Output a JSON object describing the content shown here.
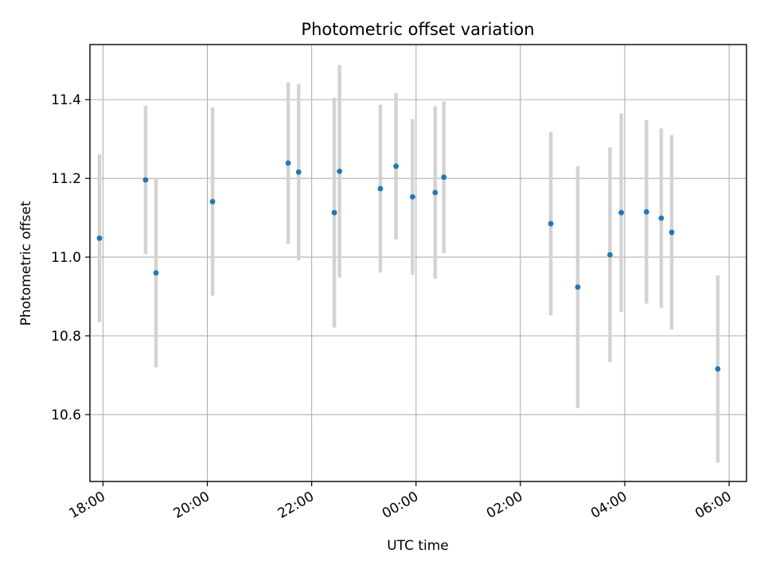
{
  "chart_data": {
    "type": "scatter",
    "title": "Photometric offset variation",
    "xlabel": "UTC time",
    "ylabel": "Photometric offset",
    "x_axis": {
      "type": "time",
      "range": [
        "17:45",
        "30:20"
      ],
      "ticks": [
        {
          "label": "18:00",
          "value": "18:00"
        },
        {
          "label": "20:00",
          "value": "20:00"
        },
        {
          "label": "22:00",
          "value": "22:00"
        },
        {
          "label": "00:00",
          "value": "24:00"
        },
        {
          "label": "02:00",
          "value": "26:00"
        },
        {
          "label": "04:00",
          "value": "28:00"
        },
        {
          "label": "06:00",
          "value": "30:00"
        }
      ]
    },
    "y_axis": {
      "ylim": [
        10.43,
        11.54
      ],
      "ticks": [
        10.6,
        10.8,
        11.0,
        11.2,
        11.4
      ],
      "tick_labels": [
        "10.6",
        "10.8",
        "11.0",
        "11.2",
        "11.4"
      ]
    },
    "grid": true,
    "marker_color": "#1f77b4",
    "errorbar_color": "#d3d3d3",
    "points": [
      {
        "time": "17:56",
        "y": 11.048,
        "err": 0.213
      },
      {
        "time": "18:49",
        "y": 11.196,
        "err": 0.188
      },
      {
        "time": "19:01",
        "y": 10.96,
        "err": 0.24
      },
      {
        "time": "20:06",
        "y": 11.141,
        "err": 0.239
      },
      {
        "time": "21:33",
        "y": 11.239,
        "err": 0.205
      },
      {
        "time": "21:45",
        "y": 11.216,
        "err": 0.224
      },
      {
        "time": "22:26",
        "y": 11.113,
        "err": 0.292
      },
      {
        "time": "22:32",
        "y": 11.218,
        "err": 0.27
      },
      {
        "time": "23:19",
        "y": 11.174,
        "err": 0.213
      },
      {
        "time": "23:37",
        "y": 11.231,
        "err": 0.186
      },
      {
        "time": "23:56",
        "y": 11.153,
        "err": 0.198
      },
      {
        "time": "00:22",
        "y": 11.164,
        "err": 0.219
      },
      {
        "time": "00:32",
        "y": 11.203,
        "err": 0.193
      },
      {
        "time": "02:35",
        "y": 11.085,
        "err": 0.233
      },
      {
        "time": "03:06",
        "y": 10.924,
        "err": 0.307
      },
      {
        "time": "03:43",
        "y": 11.006,
        "err": 0.273
      },
      {
        "time": "03:56",
        "y": 11.113,
        "err": 0.252
      },
      {
        "time": "04:25",
        "y": 11.115,
        "err": 0.233
      },
      {
        "time": "04:42",
        "y": 11.099,
        "err": 0.228
      },
      {
        "time": "04:54",
        "y": 11.063,
        "err": 0.247
      },
      {
        "time": "05:47",
        "y": 10.716,
        "err": 0.238
      }
    ]
  }
}
